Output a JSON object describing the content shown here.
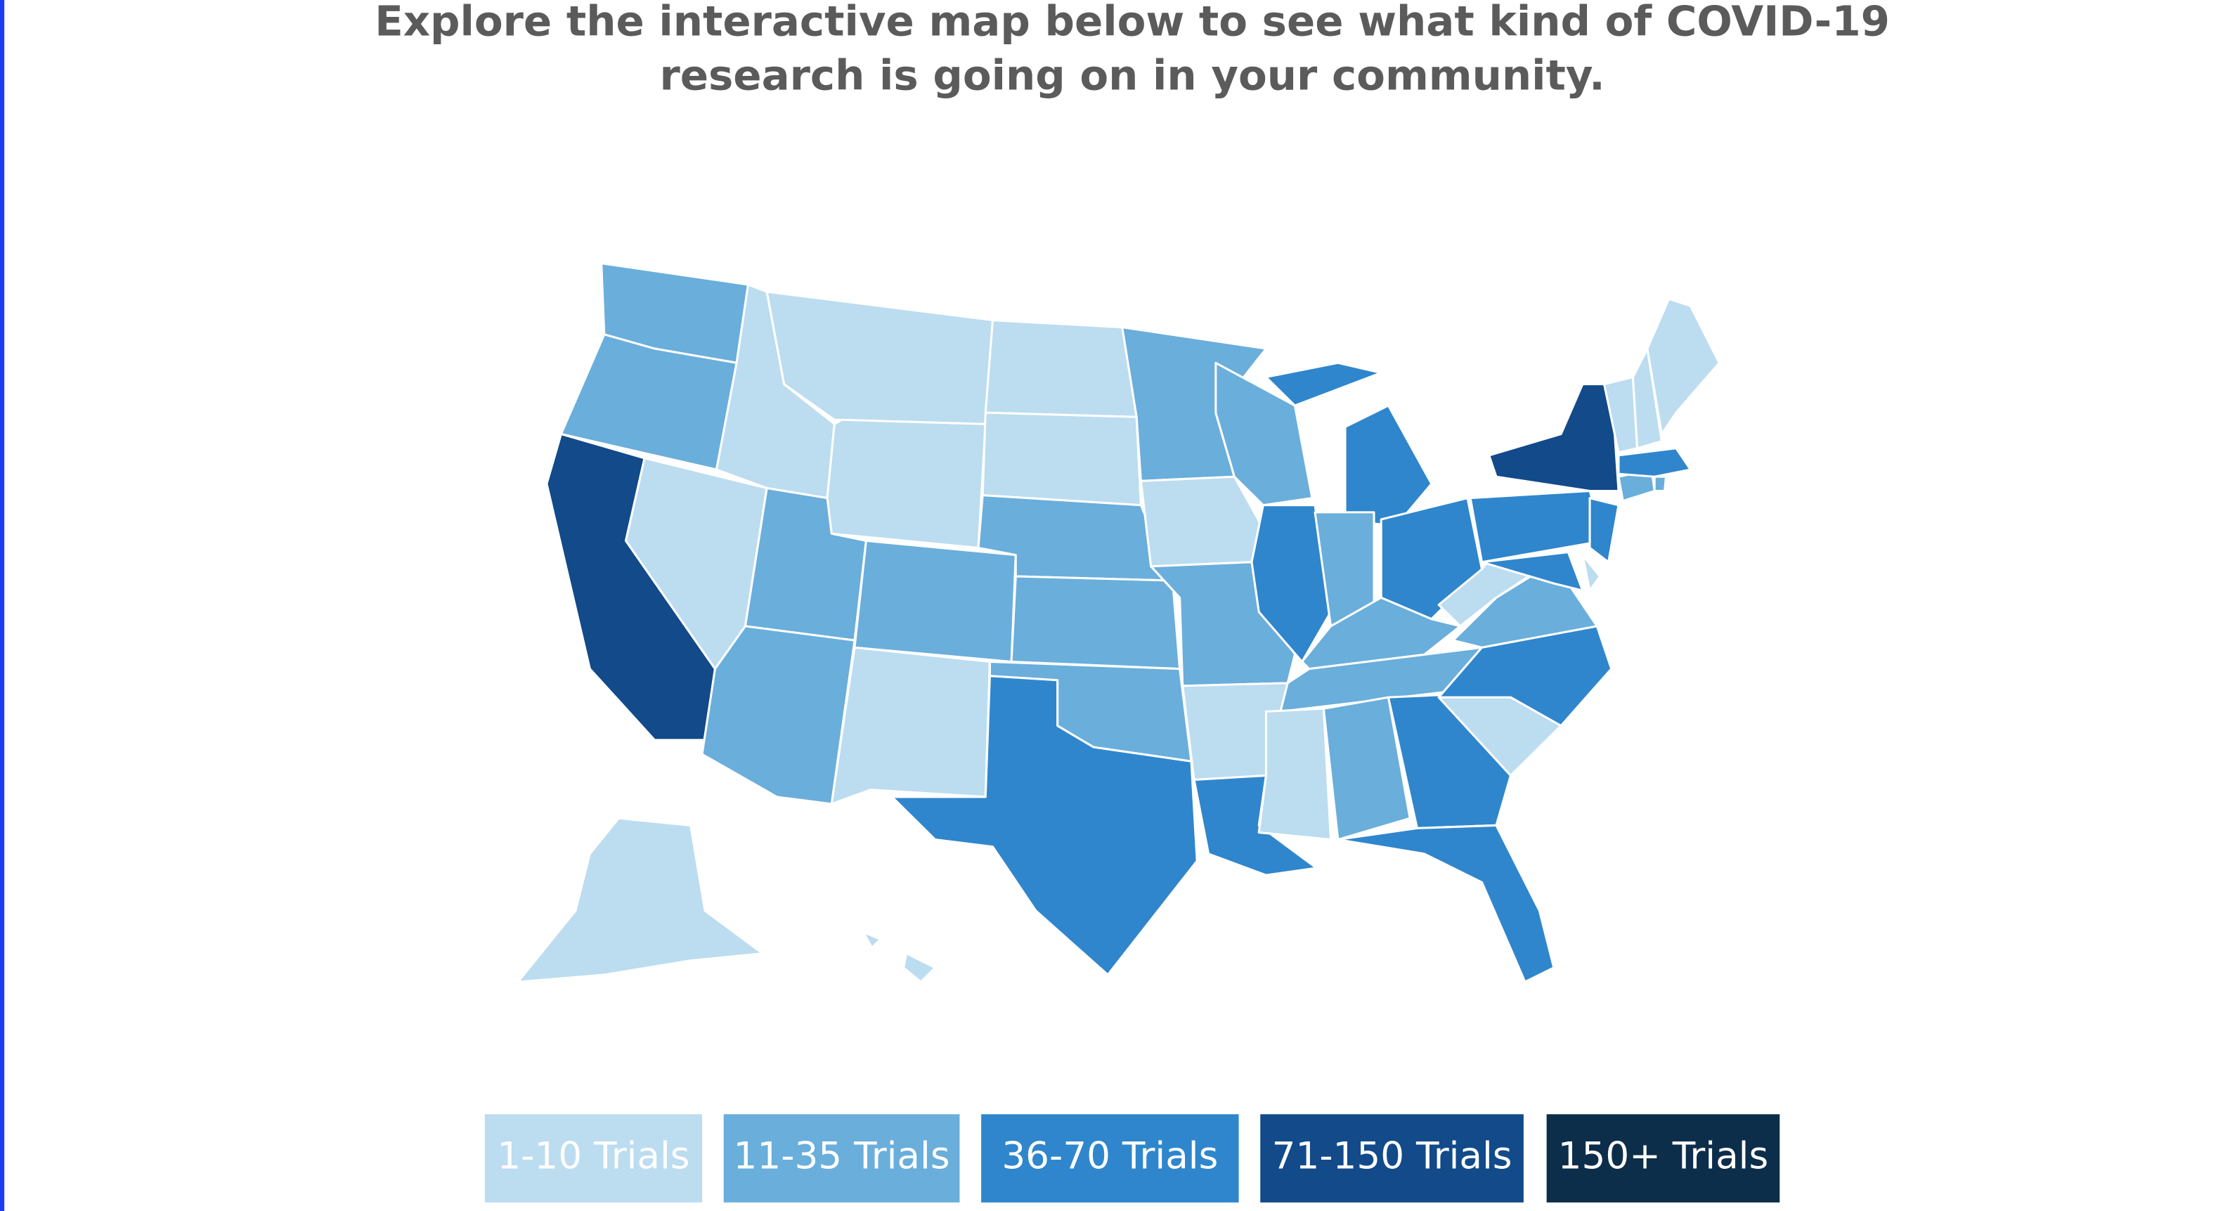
{
  "header": {
    "title_lines": [
      "Explore the interactive map below to see what kind of COVID-19",
      "research is going on in your community."
    ]
  },
  "legend": [
    {
      "label": "1-10 Trials",
      "color": "#bcdcf0"
    },
    {
      "label": "11-35 Trials",
      "color": "#6aaedb"
    },
    {
      "label": "36-70 Trials",
      "color": "#2f86cc"
    },
    {
      "label": "71-150 Trials",
      "color": "#124a8a"
    },
    {
      "label": "150+ Trials",
      "color": "#0c2e4a"
    }
  ]
}
